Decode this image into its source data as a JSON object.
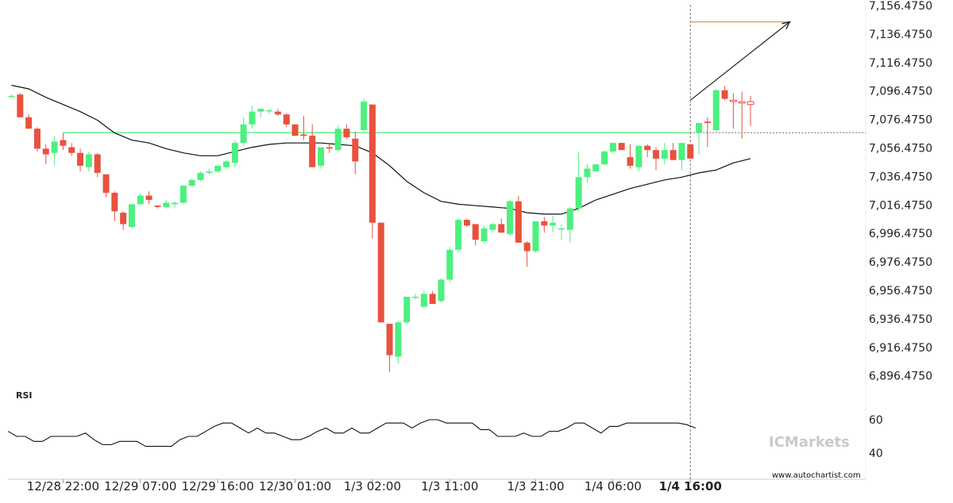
{
  "chart_data": {
    "type": "candlestick",
    "price_axis": {
      "ticks": [
        "7,156.4750",
        "7,136.4750",
        "7,116.4750",
        "7,096.4750",
        "7,076.4750",
        "7,056.4750",
        "7,036.4750",
        "7,016.4750",
        "6,996.4750",
        "6,976.4750",
        "6,956.4750",
        "6,936.4750",
        "6,916.4750",
        "6,896.4750"
      ],
      "range": [
        6890,
        7157
      ]
    },
    "time_axis": {
      "ticks": [
        {
          "label": "12/28 22:00",
          "bar": 6
        },
        {
          "label": "12/29 07:00",
          "bar": 15
        },
        {
          "label": "12/29 16:00",
          "bar": 24
        },
        {
          "label": "12/30 01:00",
          "bar": 33
        },
        {
          "label": "1/3 02:00",
          "bar": 42
        },
        {
          "label": "1/3 11:00",
          "bar": 51
        },
        {
          "label": "1/3 21:00",
          "bar": 61
        },
        {
          "label": "1/4 06:00",
          "bar": 70
        },
        {
          "label": "1/4 16:00",
          "bar": 79,
          "bold": true
        }
      ]
    },
    "candles": [
      [
        7093,
        7094,
        7092,
        7093
      ],
      [
        7094,
        7095,
        7078,
        7078
      ],
      [
        7078,
        7080,
        7070,
        7070
      ],
      [
        7070,
        7071,
        7054,
        7056
      ],
      [
        7056,
        7059,
        7045,
        7052
      ],
      [
        7053,
        7065,
        7044,
        7061
      ],
      [
        7062,
        7067,
        7055,
        7058
      ],
      [
        7057,
        7060,
        7051,
        7053
      ],
      [
        7053,
        7056,
        7040,
        7044
      ],
      [
        7043,
        7054,
        7040,
        7052
      ],
      [
        7052,
        7053,
        7036,
        7039
      ],
      [
        7038,
        7038,
        7022,
        7025
      ],
      [
        7025,
        7026,
        7005,
        7012
      ],
      [
        7011,
        7012,
        6999,
        7003
      ],
      [
        7001,
        7017,
        7000,
        7017
      ],
      [
        7017,
        7025,
        7016,
        7023
      ],
      [
        7023,
        7026,
        7017,
        7020
      ],
      [
        7016,
        7016,
        7014,
        7015
      ],
      [
        7015,
        7020,
        7014,
        7018
      ],
      [
        7017,
        7019,
        7014,
        7018
      ],
      [
        7018,
        7030,
        7017,
        7030
      ],
      [
        7030,
        7035,
        7029,
        7034
      ],
      [
        7034,
        7040,
        7033,
        7039
      ],
      [
        7039,
        7042,
        7038,
        7040
      ],
      [
        7040,
        7044,
        7039,
        7044
      ],
      [
        7043,
        7048,
        7042,
        7047
      ],
      [
        7046,
        7062,
        7043,
        7060
      ],
      [
        7060,
        7078,
        7058,
        7073
      ],
      [
        7073,
        7086,
        7070,
        7082
      ],
      [
        7082,
        7084,
        7078,
        7084
      ],
      [
        7083,
        7084,
        7080,
        7083
      ],
      [
        7082,
        7084,
        7079,
        7080
      ],
      [
        7080,
        7081,
        7071,
        7073
      ],
      [
        7073,
        7073,
        7065,
        7065
      ],
      [
        7066,
        7079,
        7062,
        7065
      ],
      [
        7065,
        7073,
        7043,
        7043
      ],
      [
        7044,
        7057,
        7042,
        7057
      ],
      [
        7057,
        7059,
        7053,
        7056
      ],
      [
        7055,
        7072,
        7054,
        7070
      ],
      [
        7070,
        7073,
        7063,
        7064
      ],
      [
        7063,
        7068,
        7038,
        7047
      ],
      [
        7069,
        7091,
        7068,
        7089
      ],
      [
        7087,
        7087,
        6993,
        7004
      ],
      [
        7004,
        7004,
        6934,
        6934
      ],
      [
        6933,
        6933,
        6899,
        6911
      ],
      [
        6910,
        6935,
        6905,
        6934
      ],
      [
        6934,
        6952,
        6933,
        6952
      ],
      [
        6952,
        6954,
        6950,
        6952
      ],
      [
        6945,
        6956,
        6944,
        6954
      ],
      [
        6954,
        6956,
        6948,
        6947
      ],
      [
        6949,
        6965,
        6948,
        6964
      ],
      [
        6964,
        6987,
        6962,
        6985
      ],
      [
        6985,
        7007,
        6983,
        7006
      ],
      [
        7006,
        7007,
        7001,
        7002
      ],
      [
        7003,
        7003,
        6988,
        6992
      ],
      [
        6991,
        7002,
        6990,
        7000
      ],
      [
        6999,
        7004,
        6997,
        7003
      ],
      [
        7003,
        7007,
        6997,
        6997
      ],
      [
        6996,
        7020,
        6995,
        7019
      ],
      [
        7019,
        7023,
        6990,
        6990
      ],
      [
        6990,
        6991,
        6973,
        6984
      ],
      [
        6984,
        7005,
        6983,
        7005
      ],
      [
        7005,
        7008,
        6997,
        7002
      ],
      [
        7002,
        7009,
        6997,
        7004
      ],
      [
        7000,
        7003,
        6992,
        7000
      ],
      [
        6999,
        7015,
        6990,
        7014
      ],
      [
        7014,
        7054,
        7012,
        7036
      ],
      [
        7036,
        7045,
        7032,
        7042
      ],
      [
        7040,
        7045,
        7040,
        7045
      ],
      [
        7045,
        7055,
        7044,
        7054
      ],
      [
        7054,
        7060,
        7053,
        7060
      ],
      [
        7060,
        7060,
        7056,
        7055
      ],
      [
        7050,
        7059,
        7042,
        7044
      ],
      [
        7043,
        7058,
        7040,
        7058
      ],
      [
        7058,
        7059,
        7050,
        7055
      ],
      [
        7055,
        7057,
        7041,
        7049
      ],
      [
        7049,
        7060,
        7045,
        7055
      ],
      [
        7055,
        7060,
        7048,
        7048
      ],
      [
        7048,
        7058,
        7041,
        7060
      ],
      [
        7059,
        7059,
        7049,
        7049
      ],
      [
        7067,
        7074,
        7052,
        7074
      ],
      [
        7075,
        7078,
        7057,
        7074
      ],
      [
        7069,
        7098,
        7068,
        7097
      ],
      [
        7097,
        7100,
        7090,
        7091
      ],
      [
        7090,
        7095,
        7070,
        7089
      ],
      [
        7089,
        7096,
        7063,
        7088
      ],
      [
        7089,
        7093,
        7072,
        7087
      ]
    ],
    "moving_average": [
      [
        0,
        7100.5
      ],
      [
        2,
        7098
      ],
      [
        4,
        7092
      ],
      [
        6,
        7087
      ],
      [
        8,
        7082
      ],
      [
        10,
        7076
      ],
      [
        12,
        7067
      ],
      [
        14,
        7062
      ],
      [
        16,
        7060
      ],
      [
        18,
        7056
      ],
      [
        20,
        7053
      ],
      [
        22,
        7051
      ],
      [
        24,
        7051
      ],
      [
        26,
        7054
      ],
      [
        28,
        7057
      ],
      [
        30,
        7059
      ],
      [
        32,
        7060
      ],
      [
        34,
        7060
      ],
      [
        36,
        7060
      ],
      [
        38,
        7059
      ],
      [
        40,
        7058
      ],
      [
        42,
        7053
      ],
      [
        44,
        7044
      ],
      [
        46,
        7033
      ],
      [
        48,
        7025
      ],
      [
        50,
        7019
      ],
      [
        52,
        7017
      ],
      [
        54,
        7016
      ],
      [
        56,
        7015
      ],
      [
        58,
        7014
      ],
      [
        60,
        7011
      ],
      [
        62,
        7010
      ],
      [
        64,
        7010
      ],
      [
        66,
        7014
      ],
      [
        68,
        7020
      ],
      [
        70,
        7024
      ],
      [
        72,
        7028
      ],
      [
        74,
        7031
      ],
      [
        76,
        7034
      ],
      [
        78,
        7036
      ],
      [
        80,
        7039
      ],
      [
        82,
        7041
      ],
      [
        84,
        7046
      ],
      [
        86,
        7049
      ]
    ],
    "support_level": {
      "value": 7067.2,
      "from_bar": 6,
      "to_bar": 79
    },
    "resistance_level": {
      "value": 7145,
      "from_bar": 79,
      "to_bar": 90
    },
    "current_price": 7067.2,
    "forecast_arrow": {
      "from": [
        79,
        7090
      ],
      "to": [
        90,
        7145
      ]
    },
    "vertical_marker_bar": 79,
    "rsi": {
      "title": "RSI",
      "ticks": [
        "60",
        "40"
      ],
      "values": [
        53,
        50,
        50,
        47,
        47,
        50,
        50,
        50,
        50,
        52,
        48,
        45,
        45,
        47,
        47,
        47,
        44,
        44,
        44,
        44,
        48,
        50,
        50,
        53,
        56,
        58,
        58,
        55,
        52,
        55,
        52,
        52,
        50,
        48,
        48,
        50,
        53,
        55,
        52,
        52,
        55,
        52,
        52,
        55,
        58,
        58,
        58,
        55,
        58,
        60,
        60,
        58,
        58,
        58,
        58,
        54,
        54,
        50,
        50,
        50,
        52,
        50,
        50,
        53,
        53,
        55,
        58,
        58,
        55,
        52,
        56,
        56,
        58,
        58,
        58,
        58,
        58,
        58,
        58,
        57,
        55
      ]
    }
  },
  "branding": {
    "watermark": "ICMarkets",
    "credit": "www.autochartist.com"
  },
  "colors": {
    "bull": "#4cf07f",
    "bear": "#e8513e",
    "support": "#6cef8a",
    "resistance": "#e2a04e",
    "grid_text": "#222222"
  }
}
